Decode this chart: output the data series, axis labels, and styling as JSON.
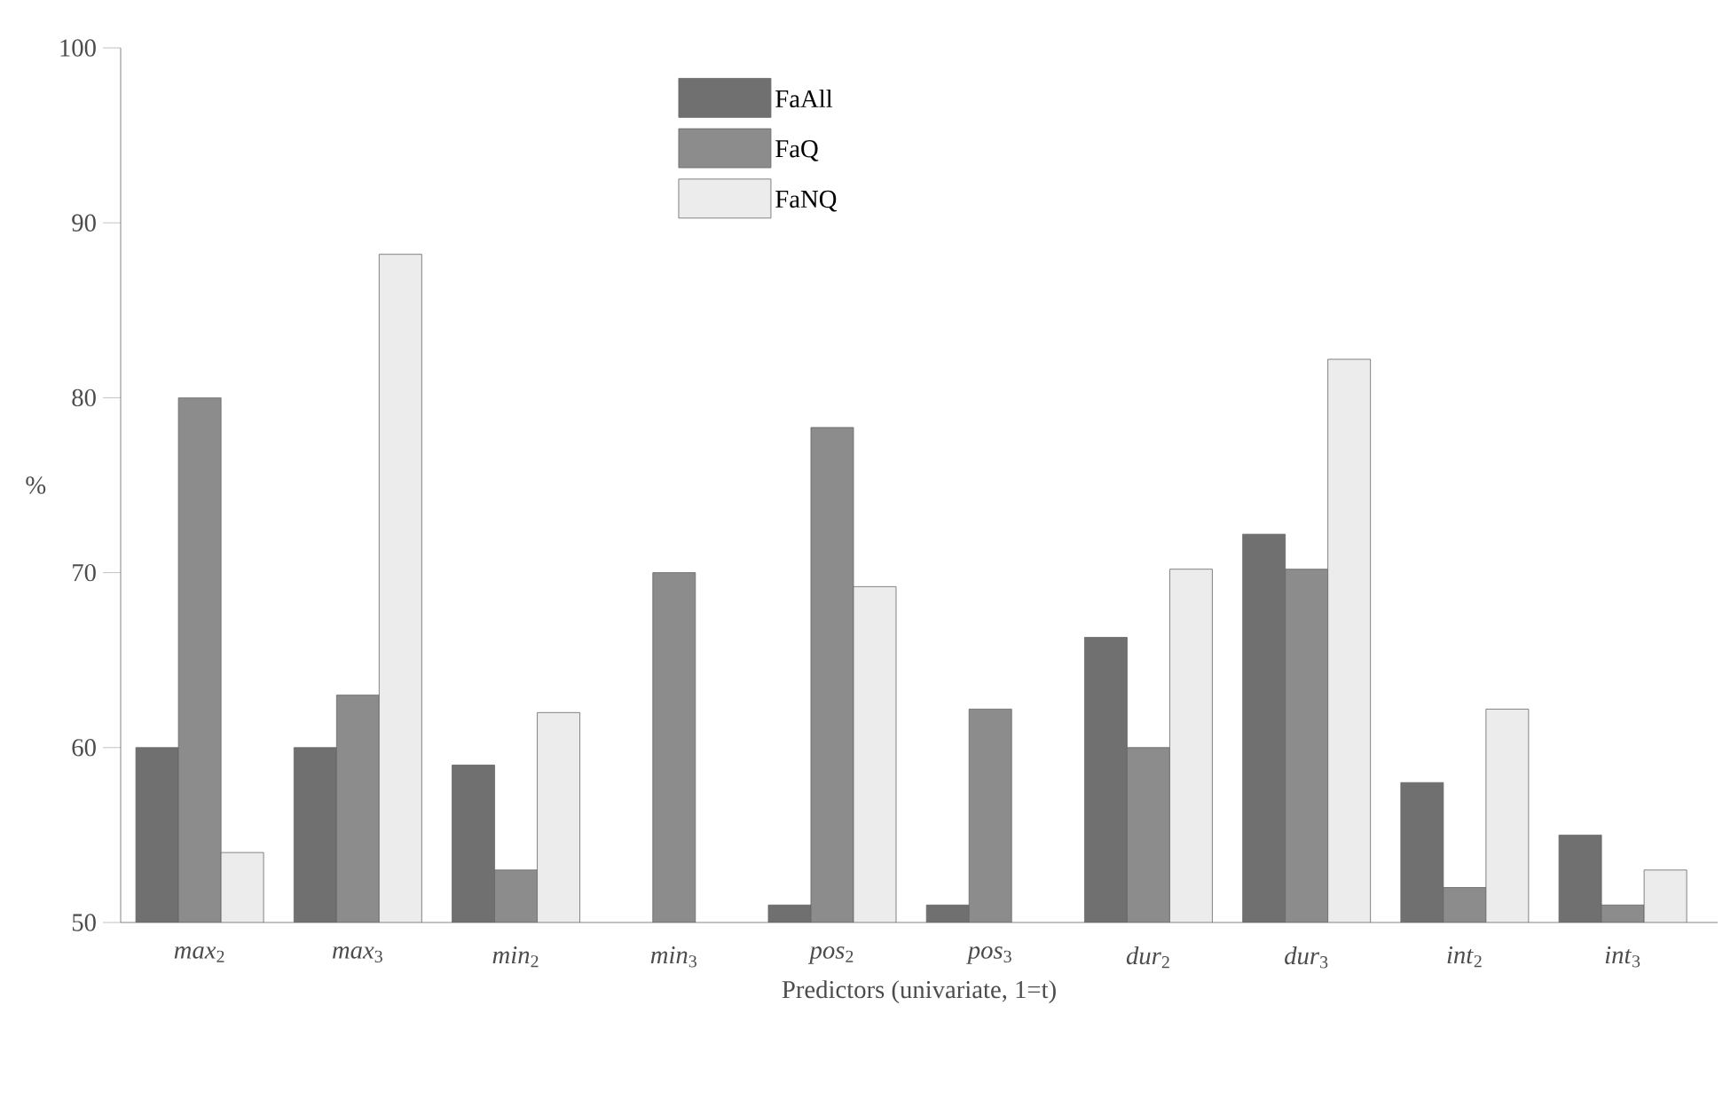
{
  "chart_data": {
    "type": "bar",
    "categories": [
      "*max*$_{2}$",
      "*max*$_{3}$",
      "*min*$_{2}$",
      "*min*$_{3}$",
      "*pos*$_{2}$",
      "*pos*$_{3}$",
      "*dur*$_{2}$",
      "*dur*$_{3}$",
      "*int*$_{2}$",
      "*int*$_{3}$"
    ],
    "series": [
      {
        "name": "FaAll",
        "color": "#707070",
        "values": [
          60,
          60,
          59,
          null,
          51,
          51,
          66.3,
          72.2,
          58,
          55
        ]
      },
      {
        "name": "FaQ",
        "color": "#8c8c8c",
        "values": [
          80,
          63,
          53,
          70,
          78.3,
          62.2,
          60,
          70.2,
          52,
          51
        ]
      },
      {
        "name": "FaNQ",
        "color": "#ececec",
        "values": [
          54,
          88.2,
          62,
          null,
          69.2,
          null,
          70.2,
          82.2,
          62.2,
          53
        ]
      }
    ],
    "xlabel": "Predictors (univariate, 1=t)",
    "ylabel": "%",
    "ylim": [
      50,
      100
    ],
    "yticks": [
      50,
      60,
      70,
      80,
      90,
      100
    ],
    "legend": "top",
    "grid": false
  }
}
